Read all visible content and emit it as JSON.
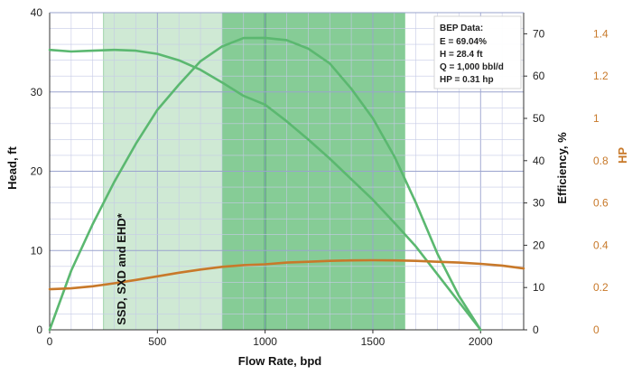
{
  "chart_data": {
    "type": "line",
    "xlabel": "Flow Rate, bpd",
    "ylabel_left": "Head, ft",
    "ylabel_right": "Efficiency, %",
    "ylabel_hp": "HP",
    "xlim": [
      0,
      2200
    ],
    "ylim_head": [
      0,
      40
    ],
    "ylim_efficiency": [
      0,
      75
    ],
    "ylim_hp": [
      0,
      1.5
    ],
    "x_ticks": [
      0,
      500,
      1000,
      1500,
      2000
    ],
    "head_ticks": [
      0,
      10,
      20,
      30,
      40
    ],
    "efficiency_ticks": [
      0,
      10,
      20,
      30,
      40,
      50,
      60,
      70
    ],
    "hp_ticks": [
      "0",
      "0.2",
      "0.4",
      "0.6",
      "0.8",
      "1",
      "1.2",
      "1.4"
    ],
    "hp_tick_values": [
      0,
      0.2,
      0.4,
      0.6,
      0.8,
      1.0,
      1.2,
      1.4
    ],
    "grid": true,
    "operating_range": {
      "outer": [
        250,
        1650
      ],
      "inner": [
        800,
        1650
      ],
      "bep_flow": 1000,
      "label": "SSD, SXD and EHD*"
    },
    "bep": {
      "title": "BEP Data:",
      "lines": [
        "E = 69.04%",
        "H = 28.4 ft",
        "Q = 1,000 bbl/d",
        "HP = 0.31 hp"
      ]
    },
    "series": [
      {
        "axis": "head",
        "color": "#5bb870",
        "x": [
          0,
          100,
          200,
          300,
          400,
          500,
          600,
          700,
          800,
          900,
          1000,
          1100,
          1200,
          1300,
          1400,
          1500,
          1600,
          1700,
          1800,
          1900,
          2000
        ],
        "y": [
          35.3,
          35.1,
          35.2,
          35.3,
          35.2,
          34.8,
          34.0,
          32.8,
          31.2,
          29.5,
          28.4,
          26.3,
          24.0,
          21.6,
          19.0,
          16.4,
          13.5,
          10.5,
          7.0,
          3.5,
          0
        ]
      },
      {
        "axis": "efficiency",
        "color": "#5bb870",
        "x": [
          0,
          100,
          200,
          300,
          400,
          500,
          600,
          700,
          800,
          900,
          1000,
          1100,
          1200,
          1300,
          1400,
          1500,
          1600,
          1700,
          1800,
          1900,
          2000
        ],
        "y": [
          0,
          14,
          25,
          35,
          44,
          52,
          58,
          63.5,
          67,
          69,
          69.04,
          68.5,
          66.5,
          63,
          57,
          50,
          41,
          30,
          18,
          8,
          0
        ]
      },
      {
        "axis": "hp",
        "color": "#c8792a",
        "x": [
          0,
          100,
          200,
          300,
          400,
          500,
          600,
          700,
          800,
          900,
          1000,
          1100,
          1200,
          1300,
          1400,
          1500,
          1600,
          1700,
          1800,
          1900,
          2000,
          2100,
          2200
        ],
        "y": [
          0.192,
          0.196,
          0.206,
          0.22,
          0.236,
          0.253,
          0.27,
          0.285,
          0.298,
          0.306,
          0.31,
          0.318,
          0.322,
          0.326,
          0.328,
          0.329,
          0.328,
          0.326,
          0.322,
          0.318,
          0.312,
          0.304,
          0.29
        ]
      }
    ]
  }
}
